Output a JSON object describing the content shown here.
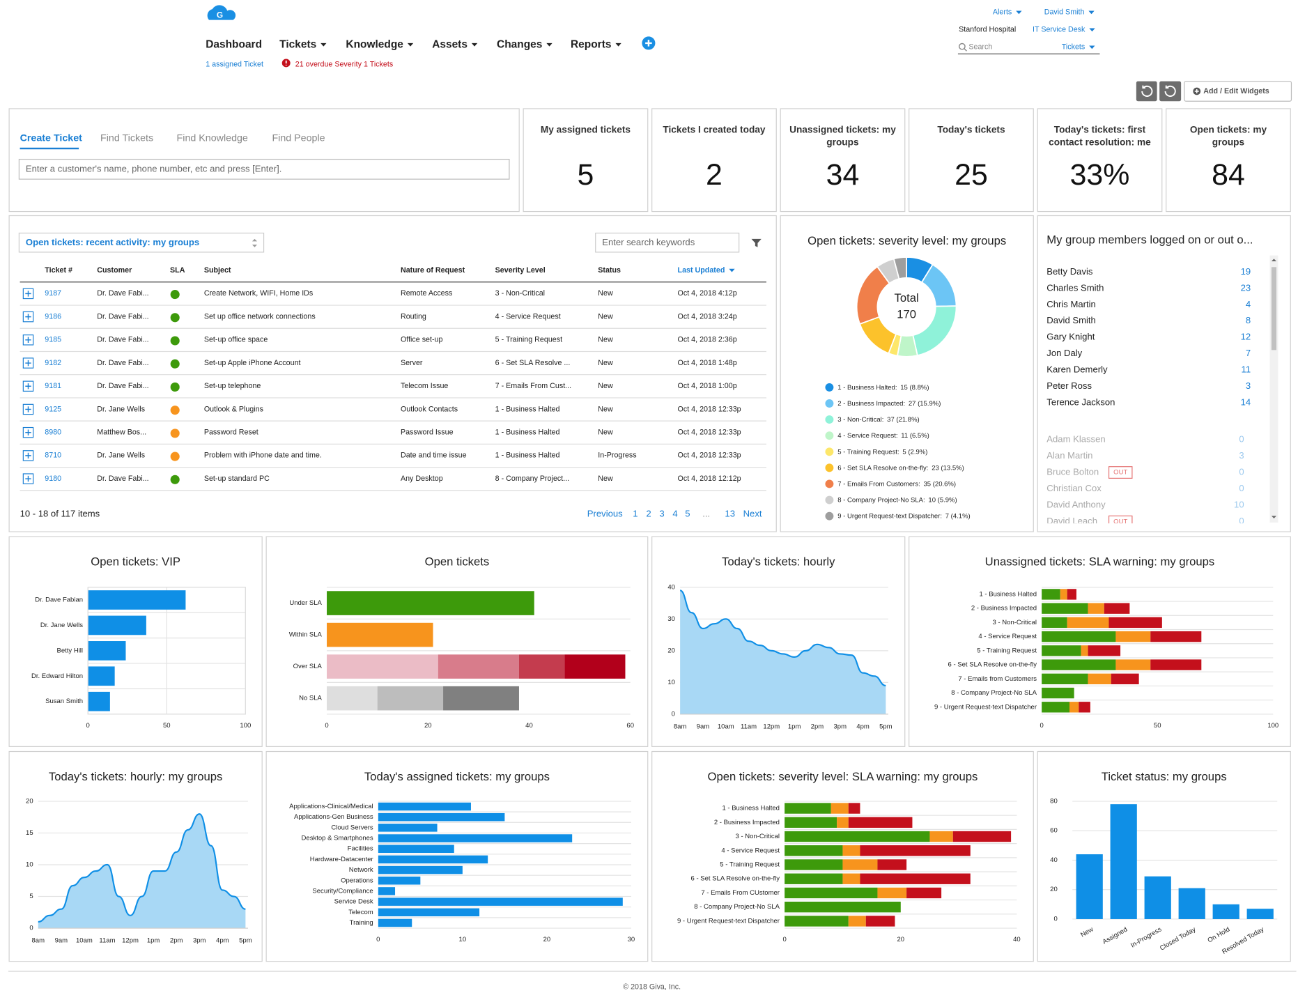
{
  "header": {
    "logo": "G",
    "nav": [
      "Dashboard",
      "Tickets",
      "Knowledge",
      "Assets",
      "Changes",
      "Reports"
    ],
    "assigned": "1 assigned Ticket",
    "overdue": "21 overdue Severity 1 Tickets",
    "alerts": "Alerts",
    "user": "David Smith",
    "org": "Stanford Hospital",
    "desk": "IT Service Desk",
    "search": "Search",
    "search_scope": "Tickets",
    "widgets_button": "Add / Edit Widgets"
  },
  "search_panel": {
    "tabs": [
      "Create Ticket",
      "Find Tickets",
      "Find Knowledge",
      "Find People"
    ],
    "placeholder": "Enter a customer's name, phone number, etc and press [Enter]."
  },
  "kpis": [
    {
      "title": [
        "My assigned tickets"
      ],
      "value": 5
    },
    {
      "title": [
        "Tickets I created today"
      ],
      "value": 2
    },
    {
      "title": [
        "Unassigned tickets: my",
        "groups"
      ],
      "value": 34
    },
    {
      "title": [
        "Today's tickets"
      ],
      "value": 25
    },
    {
      "title": [
        "Today's tickets: first",
        "contact resolution: me"
      ],
      "value": "33%"
    },
    {
      "title": [
        "Open tickets: my",
        "groups"
      ],
      "value": 84
    }
  ],
  "tickets_table": {
    "title": "Open tickets: recent activity: my groups",
    "search_placeholder": "Enter search keywords",
    "columns": [
      "Ticket #",
      "Customer",
      "SLA",
      "Subject",
      "Nature of Request",
      "Severity Level",
      "Status",
      "Last Updated"
    ],
    "rows": [
      [
        "9187",
        "Dr. Dave Fabi...",
        "Create Network, WIFI, Home IDs",
        "Remote Access",
        "3 - Non-Critical",
        "New",
        "Oct 4, 2018 4:12p"
      ],
      [
        "9186",
        "Dr. Dave Fabi...",
        "Set up office network connections",
        "Routing",
        "4 - Service Request",
        "New",
        "Oct 4, 2018 3:24p"
      ],
      [
        "9185",
        "Dr. Dave Fabi...",
        "Set-up office space",
        "Office set-up",
        "5 - Training Request",
        "New",
        "Oct 4, 2018 2:36p"
      ],
      [
        "9182",
        "Dr. Dave Fabi...",
        "Set-up Apple iPhone Account",
        "Server",
        "6 - Set SLA Resolve ...",
        "New",
        "Oct 4, 2018 1:48p"
      ],
      [
        "9181",
        "Dr. Dave Fabi...",
        "Set-up telephone",
        "Telecom Issue",
        "7 - Emails From Cust...",
        "New",
        "Oct 4, 2018 1:00p"
      ],
      [
        "9125",
        "Dr. Jane Wells",
        "Outlook & Plugins",
        "Outlook Contacts",
        "1 - Business Halted",
        "New",
        "Oct 4, 2018 12:33p"
      ],
      [
        "8980",
        "Matthew Bos...",
        "Password Reset",
        "Password Issue",
        "1 - Business Halted",
        "New",
        "Oct 4, 2018 12:33p"
      ],
      [
        "8710",
        "Dr. Jane Wells",
        "Problem with iPhone date and time.",
        "Date and time issue",
        "1 - Business Halted",
        "In-Progress",
        "Oct 4, 2018 12:33p"
      ],
      [
        "9180",
        "Dr. Dave Fabi...",
        "Set-up standard PC",
        "Any Desktop",
        "8 - Company Project...",
        "New",
        "Oct 4, 2018 12:12p"
      ]
    ],
    "sla_colors": [
      "#3d9a0b",
      "#3d9a0b",
      "#3d9a0b",
      "#3d9a0b",
      "#3d9a0b",
      "#f7941d",
      "#f7941d",
      "#f7941d",
      "#3d9a0b"
    ],
    "count": "10 - 18 of 117 items",
    "pagination": [
      "Previous",
      "1",
      "2",
      "3",
      "4",
      "5",
      "...",
      "13",
      "Next"
    ]
  },
  "members": {
    "title": "My group members logged on or out o...",
    "logged_on": [
      {
        "name": "Betty Davis",
        "count": 19
      },
      {
        "name": "Charles Smith",
        "count": 23
      },
      {
        "name": "Chris Martin",
        "count": 4
      },
      {
        "name": "David Smith",
        "count": 8
      },
      {
        "name": "Gary Knight",
        "count": 12
      },
      {
        "name": "Jon Daly",
        "count": 7
      },
      {
        "name": "Karen Demerly",
        "count": 11
      },
      {
        "name": "Peter Ross",
        "count": 3
      },
      {
        "name": "Terence Jackson",
        "count": 14
      }
    ],
    "logged_off": [
      {
        "name": "Adam Klassen",
        "count": 0
      },
      {
        "name": "Alan Martin",
        "count": 3
      },
      {
        "name": "Bruce Bolton",
        "count": 0,
        "status": "OUT"
      },
      {
        "name": "Christian Cox",
        "count": 0
      },
      {
        "name": "David Anthony",
        "count": 10
      },
      {
        "name": "David Leach",
        "count": 0,
        "status": "OUT"
      }
    ]
  },
  "chart_data": [
    {
      "type": "pie",
      "donut": true,
      "title": "Open tickets: severity level: my groups",
      "center_label": "Total",
      "center_value": 170,
      "categories": [
        "1 - Business Halted:",
        "2 - Business Impacted:",
        "3 - Non-Critical:",
        "4 - Service Request:",
        "5 - Training Request:",
        "6 - Set SLA Resolve on-the-fly:",
        "7 - Emails From Customers:",
        "8 - Company Project-No SLA:",
        "9 - Urgent Request-text Dispatcher:"
      ],
      "values": [
        15,
        27,
        37,
        11,
        5,
        23,
        35,
        10,
        7
      ],
      "value_labels": [
        "15 (8.8%)",
        "27 (15.9%)",
        "37 (21.8%)",
        "11 (6.5%)",
        "5 (2.9%)",
        "23 (13.5%)",
        "35 (20.6%)",
        "10 (5.9%)",
        "7 (4.1%)"
      ],
      "colors": [
        "#1a8fe3",
        "#6cc5f5",
        "#8ff2d9",
        "#bff5c9",
        "#fde76a",
        "#fcc22b",
        "#f07f4a",
        "#cfcfcf",
        "#9e9e9e"
      ]
    },
    {
      "type": "bar",
      "orientation": "horizontal",
      "title": "Open tickets: VIP",
      "categories": [
        "Dr. Dave Fabian",
        "Dr. Jane Wells",
        "Betty Hill",
        "Dr. Edward Hilton",
        "Susan Smith"
      ],
      "values": [
        62,
        37,
        24,
        17,
        14
      ],
      "color": "#0f8fe6",
      "xlim": [
        0,
        100
      ],
      "xticks": [
        0,
        50,
        100
      ],
      "grid": true
    },
    {
      "type": "stacked_bar",
      "orientation": "horizontal",
      "title": "Open tickets",
      "categories": [
        "Under SLA",
        "Within SLA",
        "Over SLA",
        "No SLA"
      ],
      "stacks": [
        [
          41
        ],
        [
          21
        ],
        [
          22,
          16,
          9,
          12
        ],
        [
          10,
          13,
          15
        ]
      ],
      "stack_colors": [
        [
          "#3d9a0b"
        ],
        [
          "#f7941d"
        ],
        [
          "#ebbcc6",
          "#d87c8b",
          "#c43c4e",
          "#b2001b"
        ],
        [
          "#dedede",
          "#bdbdbd",
          "#808080"
        ]
      ],
      "xlim": [
        0,
        60
      ],
      "xticks": [
        0,
        20,
        40,
        60
      ],
      "grid": false
    },
    {
      "type": "area",
      "title": "Today's tickets: hourly",
      "categories": [
        "8am",
        null,
        "9am",
        null,
        "10am",
        null,
        "11am",
        null,
        "12pm",
        null,
        "1pm",
        null,
        "2pm",
        null,
        "3pm",
        null,
        "4pm",
        null,
        "5pm"
      ],
      "values": [
        39,
        32,
        27,
        28.5,
        30,
        27,
        23,
        21.7,
        20,
        19,
        18,
        20,
        22,
        21,
        19,
        18.6,
        13,
        12,
        9
      ],
      "color": "#0f8fe6",
      "fill": "#a8d8f5",
      "ylim": [
        0,
        40
      ],
      "yticks": [
        0,
        10,
        20,
        30,
        40
      ],
      "grid": true
    },
    {
      "type": "stacked_bar",
      "orientation": "horizontal",
      "title": "Unassigned tickets: SLA warning: my groups",
      "categories": [
        "1 - Business Halted",
        "2 - Business Impacted",
        "3 - Non-Critical",
        "4 - Service Request",
        "5 - Training Request",
        "6 - Set SLA Resolve on-the-fly",
        "7 - Emails from Customers",
        "8 - Company Project-No SLA",
        "9 - Urgent Request-text Dispatcher"
      ],
      "series": [
        {
          "color": "#3d9a0b",
          "values": [
            8,
            20,
            11,
            32,
            17,
            32,
            20,
            14,
            12
          ]
        },
        {
          "color": "#f7941d",
          "values": [
            3,
            7,
            18,
            15,
            3,
            15,
            10,
            0,
            4
          ]
        },
        {
          "color": "#c4101c",
          "values": [
            4,
            11,
            23,
            22,
            14,
            22,
            12,
            0,
            5
          ]
        }
      ],
      "xlim": [
        0,
        100
      ],
      "xticks": [
        0,
        50,
        100
      ],
      "grid": false
    },
    {
      "type": "area",
      "title": "Today's tickets: hourly: my groups",
      "categories": [
        "8am",
        null,
        "9am",
        null,
        "10am",
        null,
        "11am",
        null,
        "12pm",
        null,
        "1pm",
        null,
        "2pm",
        null,
        "3pm",
        null,
        "4pm",
        null,
        "5pm"
      ],
      "values": [
        1,
        2,
        3,
        6.7,
        8,
        9,
        10,
        5,
        2,
        5,
        9,
        9,
        12,
        15.5,
        18,
        13,
        6,
        5,
        3
      ],
      "color": "#0f8fe6",
      "fill": "#a8d8f5",
      "ylim": [
        0,
        20
      ],
      "yticks": [
        0,
        5,
        10,
        15,
        20
      ],
      "grid": true
    },
    {
      "type": "bar",
      "orientation": "horizontal",
      "title": "Today's assigned tickets: my groups",
      "categories": [
        "Applications-Clinical/Medical",
        "Applications-Gen Business",
        "Cloud Servers",
        "Desktop & Smartphones",
        "Facilities",
        "Hardware-Datacenter",
        "Network",
        "Operations",
        "Security/Compliance",
        "Service Desk",
        "Telecom",
        "Training"
      ],
      "values": [
        11,
        15,
        7,
        23,
        9,
        13,
        10,
        5,
        2,
        29,
        12,
        4
      ],
      "color": "#0f8fe6",
      "xlim": [
        0,
        30
      ],
      "xticks": [
        0,
        10,
        20,
        30
      ],
      "grid": false
    },
    {
      "type": "stacked_bar",
      "orientation": "horizontal",
      "title": "Open tickets: severity level: SLA warning: my groups",
      "categories": [
        "1 - Business Halted",
        "2 - Business Impacted",
        "3 - Non-Critical",
        "4 - Service Request",
        "5 - Training Request",
        "6 - Set SLA Resolve on-the-fly",
        "7 - Emails From CUstomer",
        "8 - Company Project-No SLA",
        "9 - Urgent Request-text Dispatcher"
      ],
      "series": [
        {
          "color": "#3d9a0b",
          "values": [
            8,
            9,
            25,
            10,
            10,
            10,
            16,
            20,
            11
          ]
        },
        {
          "color": "#f7941d",
          "values": [
            3,
            2,
            4,
            3,
            6,
            3,
            5,
            0,
            3
          ]
        },
        {
          "color": "#c4101c",
          "values": [
            2,
            11,
            10,
            19,
            5,
            19,
            6,
            0,
            5
          ]
        }
      ],
      "xlim": [
        0,
        40
      ],
      "xticks": [
        0,
        20,
        40
      ],
      "grid": false
    },
    {
      "type": "bar",
      "orientation": "vertical",
      "title": "Ticket status: my groups",
      "categories": [
        "New",
        "Assigned",
        "In-Progress",
        "Closed Today",
        "On Hold",
        "Resolved Today"
      ],
      "values": [
        44,
        78,
        29,
        21,
        10,
        7
      ],
      "color": "#0f8fe6",
      "ylim": [
        0,
        80
      ],
      "yticks": [
        0,
        20,
        40,
        60,
        80
      ],
      "grid": true
    }
  ],
  "footer": "© 2018 Giva, Inc."
}
